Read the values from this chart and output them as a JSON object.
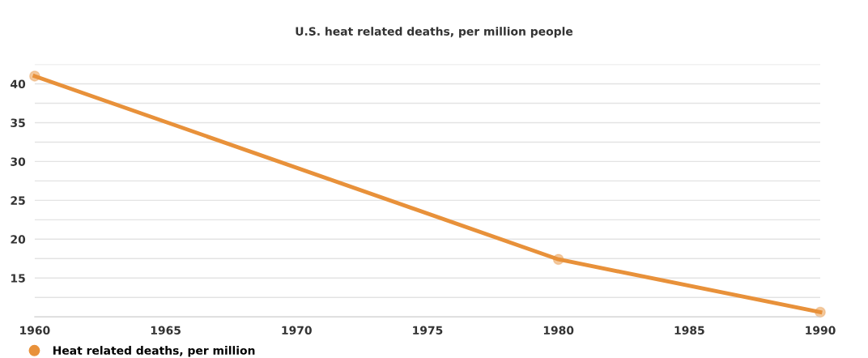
{
  "chart_data": {
    "type": "line",
    "title": "U.S. heat related deaths, per million people",
    "x": [
      1960,
      1980,
      1990
    ],
    "series": [
      {
        "name": "Heat related deaths, per million",
        "color": "#e8913a",
        "values": [
          41.0,
          17.4,
          10.6
        ]
      }
    ],
    "xlim": [
      1960,
      1990
    ],
    "xticks": [
      1960,
      1965,
      1970,
      1975,
      1980,
      1985,
      1990
    ],
    "ylim": [
      10,
      42.5
    ],
    "yticks": [
      {
        "value": 12.5,
        "label": null
      },
      15,
      {
        "value": 17.5,
        "label": null
      },
      20,
      {
        "value": 22.5,
        "label": null
      },
      25,
      {
        "value": 27.5,
        "label": null
      },
      30,
      {
        "value": 32.5,
        "label": null
      },
      35,
      {
        "value": 37.5,
        "label": null
      },
      40,
      {
        "value": 42.5,
        "label": null
      }
    ],
    "grid": "y",
    "legend": "bottom left",
    "marker": "circle",
    "line_style": "solid"
  }
}
